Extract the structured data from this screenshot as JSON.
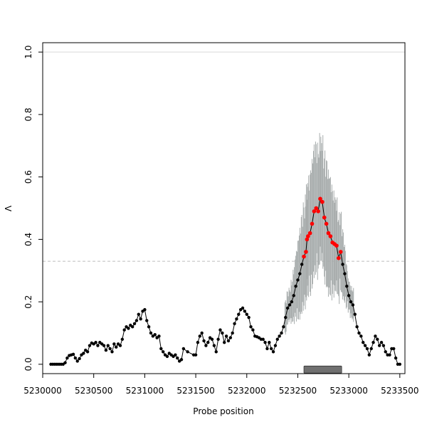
{
  "chart_data": {
    "type": "scatter",
    "title": "",
    "xlabel": "Probe position",
    "ylabel": "Λ",
    "xlim": [
      5230000,
      5233550
    ],
    "ylim": [
      -0.03,
      1.03
    ],
    "x_ticks": [
      5230000,
      5230500,
      5231000,
      5231500,
      5232000,
      5232500,
      5233000,
      5233500
    ],
    "x_tick_labels": [
      "5230000",
      "5230500",
      "5231000",
      "5231500",
      "5232000",
      "5232500",
      "5233000",
      "5233500"
    ],
    "y_ticks": [
      0.0,
      0.2,
      0.4,
      0.6,
      0.8,
      1.0
    ],
    "y_tick_labels": [
      "0.0",
      "0.2",
      "0.4",
      "0.6",
      "0.8",
      "1.0"
    ],
    "reference_lines": [
      {
        "y": 1.0,
        "style": "solid",
        "color": "#d9d9d9"
      },
      {
        "y": 0.33,
        "style": "dashed",
        "color": "#bebebe"
      }
    ],
    "region_bar": {
      "x_start": 5232560,
      "x_end": 5232930,
      "y": -0.017,
      "color": "#707070"
    },
    "colors": {
      "normal": "#000000",
      "significant": "#ff0000",
      "error_bar": "#a8adad"
    },
    "series": [
      {
        "points": [
          [
            5230080,
            0.0
          ],
          [
            5230100,
            0.0
          ],
          [
            5230120,
            0.0
          ],
          [
            5230140,
            0.0
          ],
          [
            5230160,
            0.0
          ],
          [
            5230180,
            0.0
          ],
          [
            5230200,
            0.0
          ],
          [
            5230220,
            0.005
          ],
          [
            5230240,
            0.02
          ],
          [
            5230260,
            0.028
          ],
          [
            5230280,
            0.03
          ],
          [
            5230300,
            0.032
          ],
          [
            5230320,
            0.02
          ],
          [
            5230340,
            0.01
          ],
          [
            5230360,
            0.018
          ],
          [
            5230380,
            0.03
          ],
          [
            5230400,
            0.035
          ],
          [
            5230420,
            0.045
          ],
          [
            5230440,
            0.04
          ],
          [
            5230460,
            0.06
          ],
          [
            5230480,
            0.068
          ],
          [
            5230500,
            0.065
          ],
          [
            5230520,
            0.07
          ],
          [
            5230540,
            0.06
          ],
          [
            5230560,
            0.07
          ],
          [
            5230580,
            0.065
          ],
          [
            5230600,
            0.06
          ],
          [
            5230620,
            0.045
          ],
          [
            5230640,
            0.06
          ],
          [
            5230660,
            0.05
          ],
          [
            5230680,
            0.04
          ],
          [
            5230700,
            0.065
          ],
          [
            5230720,
            0.055
          ],
          [
            5230740,
            0.065
          ],
          [
            5230760,
            0.06
          ],
          [
            5230780,
            0.08
          ],
          [
            5230800,
            0.11
          ],
          [
            5230820,
            0.12
          ],
          [
            5230840,
            0.115
          ],
          [
            5230860,
            0.125
          ],
          [
            5230880,
            0.12
          ],
          [
            5230900,
            0.13
          ],
          [
            5230920,
            0.14
          ],
          [
            5230940,
            0.16
          ],
          [
            5230960,
            0.145
          ],
          [
            5230980,
            0.17
          ],
          [
            5231000,
            0.175
          ],
          [
            5231020,
            0.14
          ],
          [
            5231040,
            0.12
          ],
          [
            5231060,
            0.1
          ],
          [
            5231080,
            0.09
          ],
          [
            5231100,
            0.095
          ],
          [
            5231120,
            0.085
          ],
          [
            5231140,
            0.09
          ],
          [
            5231160,
            0.05
          ],
          [
            5231180,
            0.04
          ],
          [
            5231200,
            0.03
          ],
          [
            5231220,
            0.025
          ],
          [
            5231240,
            0.035
          ],
          [
            5231260,
            0.03
          ],
          [
            5231280,
            0.025
          ],
          [
            5231300,
            0.03
          ],
          [
            5231320,
            0.02
          ],
          [
            5231340,
            0.01
          ],
          [
            5231360,
            0.015
          ],
          [
            5231380,
            0.05
          ],
          [
            5231420,
            0.04
          ],
          [
            5231480,
            0.03
          ],
          [
            5231500,
            0.03
          ],
          [
            5231520,
            0.07
          ],
          [
            5231540,
            0.09
          ],
          [
            5231560,
            0.1
          ],
          [
            5231580,
            0.075
          ],
          [
            5231600,
            0.06
          ],
          [
            5231620,
            0.07
          ],
          [
            5231640,
            0.085
          ],
          [
            5231660,
            0.08
          ],
          [
            5231680,
            0.06
          ],
          [
            5231700,
            0.04
          ],
          [
            5231720,
            0.08
          ],
          [
            5231740,
            0.11
          ],
          [
            5231760,
            0.1
          ],
          [
            5231780,
            0.07
          ],
          [
            5231800,
            0.09
          ],
          [
            5231820,
            0.075
          ],
          [
            5231840,
            0.085
          ],
          [
            5231860,
            0.1
          ],
          [
            5231880,
            0.13
          ],
          [
            5231900,
            0.145
          ],
          [
            5231920,
            0.16
          ],
          [
            5231940,
            0.175
          ],
          [
            5231960,
            0.18
          ],
          [
            5231980,
            0.17
          ],
          [
            5232000,
            0.16
          ],
          [
            5232020,
            0.15
          ],
          [
            5232040,
            0.12
          ],
          [
            5232060,
            0.11
          ],
          [
            5232080,
            0.09
          ],
          [
            5232100,
            0.088
          ],
          [
            5232120,
            0.085
          ],
          [
            5232140,
            0.08
          ],
          [
            5232160,
            0.08
          ],
          [
            5232180,
            0.07
          ],
          [
            5232200,
            0.05
          ],
          [
            5232220,
            0.07
          ],
          [
            5232240,
            0.05
          ],
          [
            5232260,
            0.04
          ],
          [
            5232280,
            0.06
          ],
          [
            5232300,
            0.08
          ],
          [
            5232320,
            0.09
          ],
          [
            5232340,
            0.1
          ],
          [
            5232360,
            0.12
          ],
          [
            5232380,
            0.15
          ],
          [
            5232400,
            0.18
          ],
          [
            5232420,
            0.19
          ],
          [
            5232440,
            0.2
          ],
          [
            5232460,
            0.22
          ],
          [
            5232480,
            0.25
          ],
          [
            5232500,
            0.27
          ],
          [
            5232520,
            0.29
          ],
          [
            5232540,
            0.32
          ],
          [
            5232560,
            0.345
          ],
          [
            5232580,
            0.36
          ],
          [
            5232590,
            0.4
          ],
          [
            5232600,
            0.41
          ],
          [
            5232620,
            0.42
          ],
          [
            5232640,
            0.45
          ],
          [
            5232660,
            0.49
          ],
          [
            5232680,
            0.5
          ],
          [
            5232700,
            0.49
          ],
          [
            5232720,
            0.53
          ],
          [
            5232740,
            0.52
          ],
          [
            5232760,
            0.47
          ],
          [
            5232780,
            0.45
          ],
          [
            5232800,
            0.42
          ],
          [
            5232820,
            0.41
          ],
          [
            5232840,
            0.39
          ],
          [
            5232860,
            0.385
          ],
          [
            5232880,
            0.38
          ],
          [
            5232900,
            0.34
          ],
          [
            5232920,
            0.36
          ],
          [
            5232940,
            0.32
          ],
          [
            5232960,
            0.29
          ],
          [
            5232980,
            0.25
          ],
          [
            5233000,
            0.22
          ],
          [
            5233020,
            0.2
          ],
          [
            5233040,
            0.19
          ],
          [
            5233060,
            0.16
          ],
          [
            5233080,
            0.12
          ],
          [
            5233100,
            0.1
          ],
          [
            5233120,
            0.09
          ],
          [
            5233140,
            0.07
          ],
          [
            5233160,
            0.06
          ],
          [
            5233180,
            0.05
          ],
          [
            5233200,
            0.03
          ],
          [
            5233220,
            0.05
          ],
          [
            5233240,
            0.07
          ],
          [
            5233260,
            0.09
          ],
          [
            5233280,
            0.08
          ],
          [
            5233300,
            0.06
          ],
          [
            5233320,
            0.07
          ],
          [
            5233340,
            0.06
          ],
          [
            5233360,
            0.04
          ],
          [
            5233380,
            0.03
          ],
          [
            5233400,
            0.03
          ],
          [
            5233420,
            0.05
          ],
          [
            5233440,
            0.05
          ],
          [
            5233460,
            0.02
          ],
          [
            5233480,
            0.0
          ],
          [
            5233500,
            0.0
          ]
        ],
        "significant_range": [
          5232560,
          5232920
        ],
        "error_bar_range": [
          5232380,
          5233040
        ],
        "error_half_width_peak": 0.22
      }
    ]
  }
}
